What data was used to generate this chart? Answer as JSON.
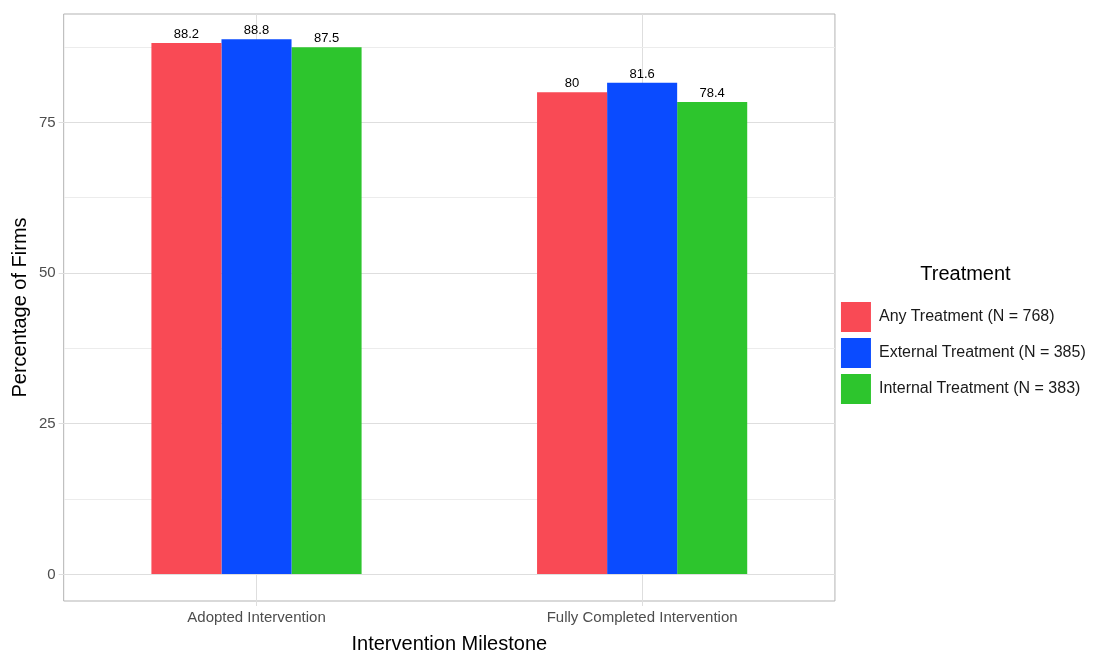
{
  "chart_data": {
    "type": "bar",
    "xlabel": "Intervention Milestone",
    "ylabel": "Percentage of Firms",
    "legend_title": "Treatment",
    "categories": [
      "Adopted Intervention",
      "Fully Completed Intervention"
    ],
    "series": [
      {
        "name": "Any Treatment (N = 768)",
        "color": "#f94a55",
        "values": [
          88.2,
          80
        ]
      },
      {
        "name": "External Treatment (N = 385)",
        "color": "#0a4bff",
        "values": [
          88.8,
          81.6
        ]
      },
      {
        "name": "Internal Treatment (N = 383)",
        "color": "#2dc52d",
        "values": [
          87.5,
          78.4
        ]
      }
    ],
    "ylim": [
      -4.4,
      93
    ],
    "yticks": [
      0,
      {
        "value": 12.5,
        "label": null
      },
      25,
      {
        "value": 37.5,
        "label": null
      },
      50,
      {
        "value": 62.5,
        "label": null
      },
      75,
      {
        "value": 87.5,
        "label": null
      }
    ],
    "grid": true,
    "legend": "right",
    "data_labels": true
  }
}
